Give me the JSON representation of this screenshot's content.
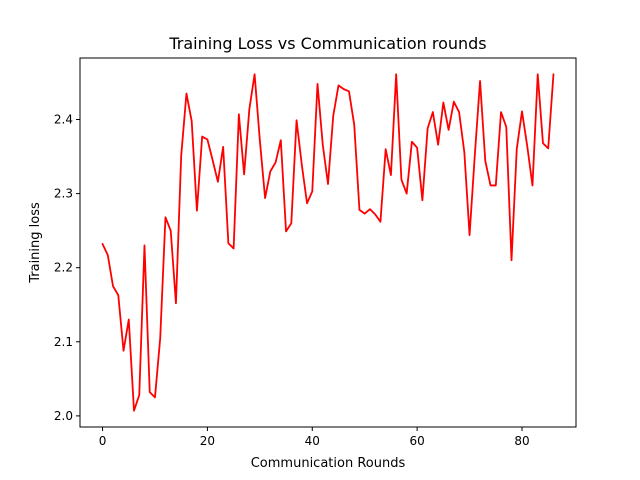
{
  "chart_data": {
    "type": "line",
    "title": "Training Loss vs Communication rounds",
    "xlabel": "Communication Rounds",
    "ylabel": "Training loss",
    "xlim": [
      -4.3,
      90.3
    ],
    "ylim": [
      1.985,
      2.483
    ],
    "xticks": [
      0,
      20,
      40,
      60,
      80
    ],
    "yticks": [
      2.0,
      2.1,
      2.2,
      2.3,
      2.4
    ],
    "xtick_labels": [
      "0",
      "20",
      "40",
      "60",
      "80"
    ],
    "ytick_labels": [
      "2.0",
      "2.1",
      "2.2",
      "2.3",
      "2.4"
    ],
    "grid": false,
    "series": [
      {
        "color": "#ff0000",
        "x": [
          0,
          1,
          2,
          3,
          4,
          5,
          6,
          7,
          8,
          9,
          10,
          11,
          12,
          13,
          14,
          15,
          16,
          17,
          18,
          19,
          20,
          21,
          22,
          23,
          24,
          25,
          26,
          27,
          28,
          29,
          30,
          31,
          32,
          33,
          34,
          35,
          36,
          37,
          38,
          39,
          40,
          41,
          42,
          43,
          44,
          45,
          46,
          47,
          48,
          49,
          50,
          51,
          52,
          53,
          54,
          55,
          56,
          57,
          58,
          59,
          60,
          61,
          62,
          63,
          64,
          65,
          66,
          67,
          68,
          69,
          70,
          71,
          72,
          73,
          74,
          75,
          76,
          77,
          78,
          79,
          80,
          81,
          82,
          83,
          84,
          85,
          86
        ],
        "values": [
          2.232,
          2.217,
          2.175,
          2.163,
          2.088,
          2.13,
          2.007,
          2.028,
          2.23,
          2.032,
          2.025,
          2.105,
          2.268,
          2.25,
          2.152,
          2.351,
          2.435,
          2.398,
          2.277,
          2.377,
          2.373,
          2.345,
          2.316,
          2.363,
          2.233,
          2.226,
          2.407,
          2.326,
          2.414,
          2.461,
          2.372,
          2.294,
          2.33,
          2.342,
          2.372,
          2.249,
          2.26,
          2.399,
          2.339,
          2.287,
          2.303,
          2.448,
          2.366,
          2.313,
          2.405,
          2.446,
          2.441,
          2.438,
          2.393,
          2.278,
          2.273,
          2.279,
          2.272,
          2.262,
          2.36,
          2.325,
          2.461,
          2.319,
          2.3,
          2.37,
          2.362,
          2.291,
          2.388,
          2.41,
          2.366,
          2.423,
          2.386,
          2.424,
          2.41,
          2.356,
          2.244,
          2.352,
          2.452,
          2.344,
          2.311,
          2.311,
          2.41,
          2.39,
          2.21,
          2.36,
          2.411,
          2.364,
          2.311,
          2.461,
          2.368,
          2.361,
          2.461
        ]
      }
    ]
  }
}
